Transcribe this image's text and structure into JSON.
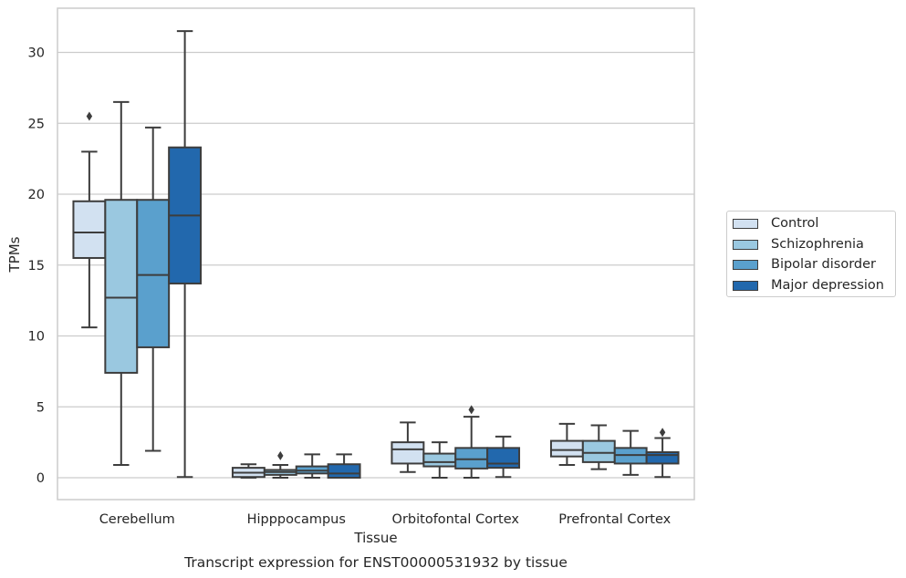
{
  "chart_data": {
    "type": "box",
    "title": "Transcript expression for ENST00000531932 by tissue",
    "xlabel": "Tissue",
    "ylabel": "TPMs",
    "ylim": [
      -1.5,
      33
    ],
    "yticks": [
      0,
      5,
      10,
      15,
      20,
      25,
      30
    ],
    "grid": "horizontal",
    "legend_position": "right",
    "categories": [
      "Cerebellum",
      "Hipppocampus",
      "Orbitofontal Cortex",
      "Prefrontal Cortex"
    ],
    "series": [
      {
        "name": "Control",
        "color": "#d2e1f1",
        "boxes": [
          {
            "whisker_low": 10.6,
            "q1": 15.5,
            "median": 17.3,
            "q3": 19.5,
            "whisker_high": 23.0,
            "outliers": [
              25.5
            ]
          },
          {
            "whisker_low": 0.0,
            "q1": 0.05,
            "median": 0.35,
            "q3": 0.7,
            "whisker_high": 0.95,
            "outliers": []
          },
          {
            "whisker_low": 0.4,
            "q1": 1.0,
            "median": 2.0,
            "q3": 2.5,
            "whisker_high": 3.9,
            "outliers": []
          },
          {
            "whisker_low": 0.9,
            "q1": 1.5,
            "median": 1.95,
            "q3": 2.6,
            "whisker_high": 3.8,
            "outliers": []
          }
        ]
      },
      {
        "name": "Schizophrenia",
        "color": "#9ac8e0",
        "boxes": [
          {
            "whisker_low": 0.9,
            "q1": 7.4,
            "median": 12.7,
            "q3": 19.6,
            "whisker_high": 26.5,
            "outliers": []
          },
          {
            "whisker_low": 0.0,
            "q1": 0.2,
            "median": 0.4,
            "q3": 0.55,
            "whisker_high": 0.9,
            "outliers": [
              1.55
            ]
          },
          {
            "whisker_low": 0.0,
            "q1": 0.8,
            "median": 1.1,
            "q3": 1.7,
            "whisker_high": 2.5,
            "outliers": []
          },
          {
            "whisker_low": 0.6,
            "q1": 1.1,
            "median": 1.75,
            "q3": 2.6,
            "whisker_high": 3.7,
            "outliers": []
          }
        ]
      },
      {
        "name": "Bipolar disorder",
        "color": "#5aa0cd",
        "boxes": [
          {
            "whisker_low": 1.9,
            "q1": 9.2,
            "median": 14.3,
            "q3": 19.6,
            "whisker_high": 24.7,
            "outliers": []
          },
          {
            "whisker_low": 0.0,
            "q1": 0.3,
            "median": 0.5,
            "q3": 0.8,
            "whisker_high": 1.65,
            "outliers": []
          },
          {
            "whisker_low": 0.0,
            "q1": 0.65,
            "median": 1.3,
            "q3": 2.1,
            "whisker_high": 4.3,
            "outliers": [
              4.8
            ]
          },
          {
            "whisker_low": 0.2,
            "q1": 1.0,
            "median": 1.6,
            "q3": 2.1,
            "whisker_high": 3.3,
            "outliers": []
          }
        ]
      },
      {
        "name": "Major depression",
        "color": "#2268ad",
        "boxes": [
          {
            "whisker_low": 0.05,
            "q1": 13.7,
            "median": 18.5,
            "q3": 23.3,
            "whisker_high": 31.5,
            "outliers": []
          },
          {
            "whisker_low": 0.0,
            "q1": 0.0,
            "median": 0.3,
            "q3": 0.95,
            "whisker_high": 1.65,
            "outliers": []
          },
          {
            "whisker_low": 0.05,
            "q1": 0.7,
            "median": 1.0,
            "q3": 2.1,
            "whisker_high": 2.9,
            "outliers": []
          },
          {
            "whisker_low": 0.05,
            "q1": 1.0,
            "median": 1.6,
            "q3": 1.8,
            "whisker_high": 2.8,
            "outliers": [
              3.2
            ]
          }
        ]
      }
    ]
  }
}
